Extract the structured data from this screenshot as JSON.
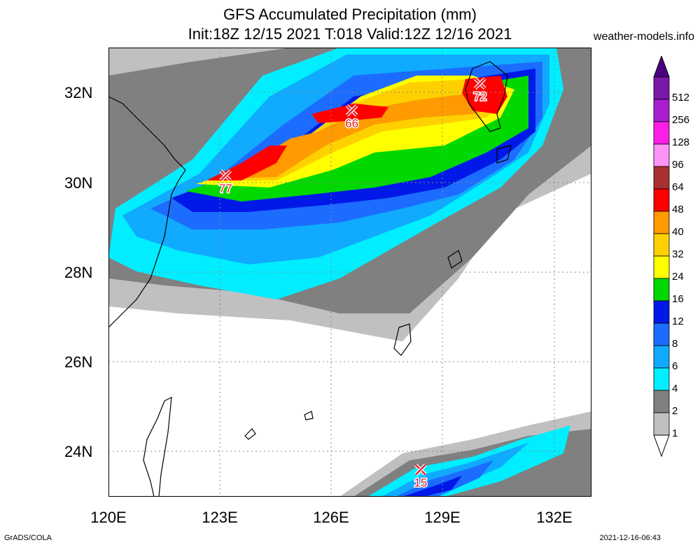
{
  "title": {
    "line1": "GFS Accumulated Precipitation (mm)",
    "line2": "Init:18Z 12/15 2021 T:018 Valid:12Z 12/16 2021"
  },
  "site": "weather-models.info",
  "footer": {
    "left": "GrADS/COLA",
    "right": "2021-12-16-06:43"
  },
  "axes": {
    "lat_labels": [
      "32N",
      "30N",
      "28N",
      "26N",
      "24N"
    ],
    "lon_labels": [
      "120E",
      "123E",
      "126E",
      "129E",
      "132E"
    ],
    "lat_values": [
      32,
      30,
      28,
      26,
      24
    ],
    "lon_values": [
      120,
      123,
      126,
      129,
      132
    ],
    "lat_range": [
      23,
      33
    ],
    "lon_range": [
      120,
      133
    ]
  },
  "legend": {
    "levels": [
      "512",
      "256",
      "128",
      "96",
      "64",
      "48",
      "40",
      "32",
      "24",
      "16",
      "12",
      "8",
      "6",
      "4",
      "2",
      "1"
    ],
    "colors": [
      "#7a18a8",
      "#a81fd0",
      "#ff1ee8",
      "#ff92f6",
      "#a83030",
      "#ff0000",
      "#ff9a00",
      "#ffd000",
      "#ffff00",
      "#00d800",
      "#0018e8",
      "#1c6cff",
      "#10aaff",
      "#00eeff",
      "#808080",
      "#c0c0c0"
    ]
  },
  "maxima": [
    {
      "label": "77",
      "lat": 30.15,
      "lon": 123.15
    },
    {
      "label": "66",
      "lat": 31.6,
      "lon": 126.55
    },
    {
      "label": "72",
      "lat": 32.2,
      "lon": 130.0
    },
    {
      "label": "15",
      "lat": 23.6,
      "lon": 128.4
    }
  ]
}
